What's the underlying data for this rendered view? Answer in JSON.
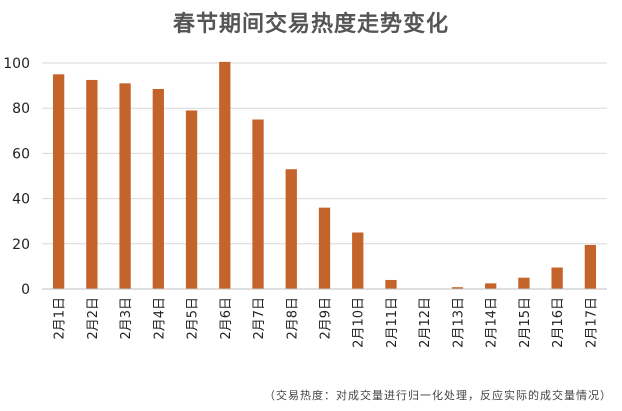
{
  "chart_data": {
    "type": "bar",
    "title": "春节期间交易热度走势变化",
    "categories": [
      "2月1日",
      "2月2日",
      "2月3日",
      "2月4日",
      "2月5日",
      "2月6日",
      "2月7日",
      "2月8日",
      "2月9日",
      "2月10日",
      "2月11日",
      "2月12日",
      "2月13日",
      "2月14日",
      "2月15日",
      "2月16日",
      "2月17日"
    ],
    "values": [
      95,
      92.5,
      91,
      88.5,
      79,
      100.5,
      75,
      53,
      36,
      25,
      4,
      0,
      0.8,
      2.5,
      5,
      9.5,
      19.5
    ],
    "ylim": [
      0,
      100
    ],
    "yticks": [
      0,
      20,
      40,
      60,
      80,
      100
    ],
    "bar_color": "#C5642A",
    "grid": true
  },
  "footnote": "（交易热度：对成交量进行归一化处理，反应实际的成交量情况）"
}
